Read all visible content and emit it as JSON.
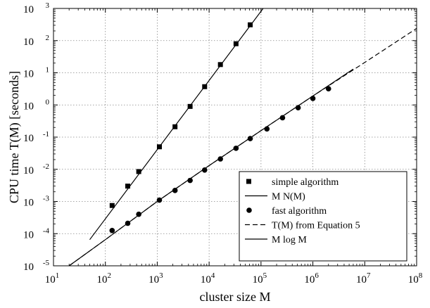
{
  "chart_data": {
    "type": "line",
    "xlabel": "cluster size M",
    "ylabel": "CPU time T(M) [seconds]",
    "x_scale": "log",
    "y_scale": "log",
    "xlim": [
      10,
      100000000
    ],
    "ylim": [
      1e-05,
      1000
    ],
    "grid": true,
    "legend_position": "bottom-right",
    "x_ticks": [
      {
        "value": 10,
        "base": "10",
        "exp": "1"
      },
      {
        "value": 100,
        "base": "10",
        "exp": "2"
      },
      {
        "value": 1000,
        "base": "10",
        "exp": "3"
      },
      {
        "value": 10000,
        "base": "10",
        "exp": "4"
      },
      {
        "value": 100000,
        "base": "10",
        "exp": "5"
      },
      {
        "value": 1000000,
        "base": "10",
        "exp": "6"
      },
      {
        "value": 10000000,
        "base": "10",
        "exp": "7"
      },
      {
        "value": 100000000,
        "base": "10",
        "exp": "8"
      }
    ],
    "y_ticks": [
      {
        "value": 1e-05,
        "base": "10",
        "exp": "-5"
      },
      {
        "value": 0.0001,
        "base": "10",
        "exp": "-4"
      },
      {
        "value": 0.001,
        "base": "10",
        "exp": "-3"
      },
      {
        "value": 0.01,
        "base": "10",
        "exp": "-2"
      },
      {
        "value": 0.1,
        "base": "10",
        "exp": "-1"
      },
      {
        "value": 1,
        "base": "10",
        "exp": "0"
      },
      {
        "value": 10,
        "base": "10",
        "exp": "1"
      },
      {
        "value": 100,
        "base": "10",
        "exp": "2"
      },
      {
        "value": 1000,
        "base": "10",
        "exp": "3"
      }
    ],
    "series": [
      {
        "name": "simple algorithm",
        "style": "square-markers",
        "color": "#000000",
        "points": [
          {
            "x": 135,
            "y": 0.00075
          },
          {
            "x": 270,
            "y": 0.003
          },
          {
            "x": 440,
            "y": 0.0085
          },
          {
            "x": 1100,
            "y": 0.05
          },
          {
            "x": 2200,
            "y": 0.21
          },
          {
            "x": 4300,
            "y": 0.9
          },
          {
            "x": 8200,
            "y": 3.7
          },
          {
            "x": 16500,
            "y": 18
          },
          {
            "x": 33000,
            "y": 80
          },
          {
            "x": 62000,
            "y": 310
          }
        ]
      },
      {
        "name": "M N(M)",
        "style": "solid-line",
        "color": "#000000",
        "points": [
          {
            "x": 50,
            "y": 6.5e-05
          },
          {
            "x": 110000,
            "y": 1000
          }
        ]
      },
      {
        "name": "fast algorithm",
        "style": "circle-markers",
        "color": "#000000",
        "points": [
          {
            "x": 135,
            "y": 0.000125
          },
          {
            "x": 270,
            "y": 0.00021
          },
          {
            "x": 440,
            "y": 0.0004
          },
          {
            "x": 1100,
            "y": 0.0011
          },
          {
            "x": 2200,
            "y": 0.0022
          },
          {
            "x": 4300,
            "y": 0.0045
          },
          {
            "x": 8200,
            "y": 0.0095
          },
          {
            "x": 16500,
            "y": 0.021
          },
          {
            "x": 33000,
            "y": 0.045
          },
          {
            "x": 62000,
            "y": 0.09
          },
          {
            "x": 130000,
            "y": 0.18
          },
          {
            "x": 260000,
            "y": 0.4
          },
          {
            "x": 520000,
            "y": 0.82
          },
          {
            "x": 1000000,
            "y": 1.6
          },
          {
            "x": 2000000,
            "y": 3.2
          }
        ]
      },
      {
        "name": "T(M) from Equation 5",
        "style": "dashed-line",
        "color": "#000000",
        "points": [
          {
            "x": 20,
            "y": 1e-05
          },
          {
            "x": 100,
            "y": 6.5e-05
          },
          {
            "x": 1000,
            "y": 0.001
          },
          {
            "x": 10000,
            "y": 0.013
          },
          {
            "x": 100000,
            "y": 0.16
          },
          {
            "x": 1000000,
            "y": 1.9
          },
          {
            "x": 10000000,
            "y": 21
          },
          {
            "x": 100000000,
            "y": 240
          }
        ]
      },
      {
        "name": "M log M",
        "style": "solid-line",
        "color": "#000000",
        "points": [
          {
            "x": 20,
            "y": 1e-05
          },
          {
            "x": 100,
            "y": 6.5e-05
          },
          {
            "x": 1000,
            "y": 0.001
          },
          {
            "x": 10000,
            "y": 0.013
          },
          {
            "x": 100000,
            "y": 0.16
          },
          {
            "x": 1000000,
            "y": 1.9
          },
          {
            "x": 6000000,
            "y": 13
          }
        ]
      }
    ],
    "legend": [
      {
        "label": "simple algorithm",
        "symbol": "square"
      },
      {
        "label": "M N(M)",
        "symbol": "solid"
      },
      {
        "label": "fast algorithm",
        "symbol": "circle"
      },
      {
        "label": "T(M) from Equation 5",
        "symbol": "dashed"
      },
      {
        "label": "M log M",
        "symbol": "solid"
      }
    ]
  }
}
